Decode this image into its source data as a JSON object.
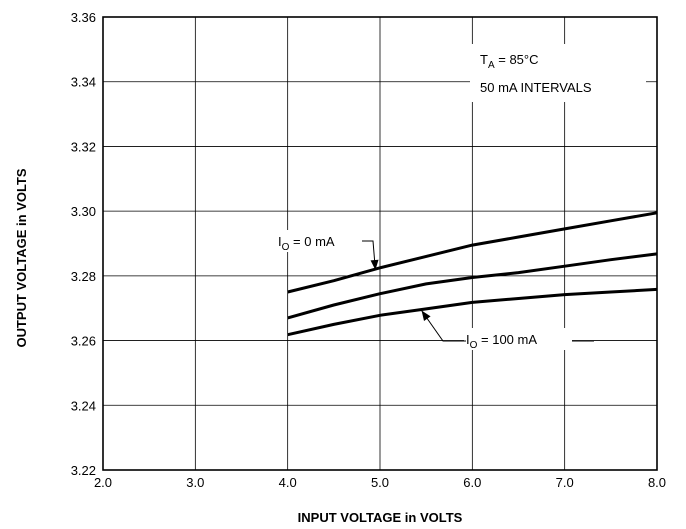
{
  "chart_data": {
    "type": "line",
    "xlabel": "INPUT VOLTAGE in VOLTS",
    "ylabel": "OUTPUT VOLTAGE in VOLTS",
    "xlim": [
      2.0,
      8.0
    ],
    "ylim": [
      3.22,
      3.36
    ],
    "x_ticks": [
      "2.0",
      "3.0",
      "4.0",
      "5.0",
      "6.0",
      "7.0",
      "8.0"
    ],
    "y_ticks": [
      "3.22",
      "3.24",
      "3.26",
      "3.28",
      "3.30",
      "3.32",
      "3.34",
      "3.36"
    ],
    "grid": true,
    "legend_box": {
      "line1_main": "T",
      "line1_sub": "A",
      "line1_rest": " = 85°C",
      "line2": "50 mA INTERVALS",
      "position": "top-right"
    },
    "series": [
      {
        "x": [
          4.0,
          4.5,
          5.0,
          5.5,
          6.0,
          6.5,
          7.0,
          7.5,
          8.0
        ],
        "y": [
          3.275,
          3.2785,
          3.2825,
          3.286,
          3.2895,
          3.292,
          3.2945,
          3.297,
          3.2995
        ]
      },
      {
        "x": [
          4.0,
          4.5,
          5.0,
          5.5,
          6.0,
          6.5,
          7.0,
          7.5,
          8.0
        ],
        "y": [
          3.267,
          3.271,
          3.2745,
          3.2775,
          3.2795,
          3.281,
          3.283,
          3.285,
          3.2868
        ]
      },
      {
        "x": [
          4.0,
          4.5,
          5.0,
          5.5,
          6.0,
          6.5,
          7.0,
          7.5,
          8.0
        ],
        "y": [
          3.2618,
          3.265,
          3.2678,
          3.2698,
          3.2718,
          3.273,
          3.2742,
          3.275,
          3.2758
        ]
      }
    ],
    "annotations": [
      {
        "main": "I",
        "sub": "O",
        "rest": " = 0 mA",
        "points_to": {
          "x": 4.95,
          "y": 3.2818
        }
      },
      {
        "main": "I",
        "sub": "O",
        "rest": " = 100 mA",
        "points_to": {
          "x": 5.45,
          "y": 3.2693
        }
      }
    ]
  }
}
